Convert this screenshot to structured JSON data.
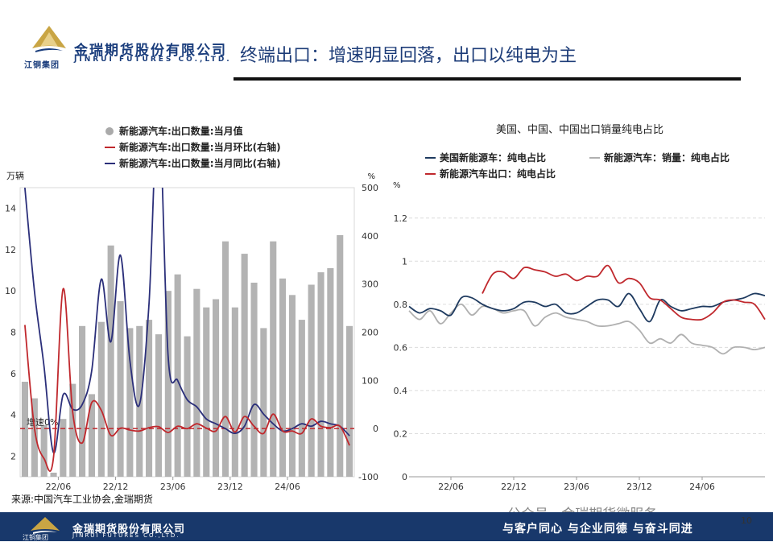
{
  "header": {
    "company_cn": "金瑞期货股份有限公司",
    "company_en": "JINRUI FUTURES CO.,LTD.",
    "logo_sub": "江铜集团",
    "title": "终端出口：增速明显回落，出口以纯电为主"
  },
  "footer": {
    "source": "来源:中国汽车工业协会,金瑞期货",
    "company_cn": "金瑞期货股份有限公司",
    "company_en": "JINRUI FUTURES CO.,LTD.",
    "logo_sub": "江铜集团",
    "slogan": "与客户同心 与企业同德 与奋斗同进",
    "watermark": "公众号 · 金瑞期货微服务",
    "page": "10"
  },
  "colors": {
    "brand_navy": "#18386b",
    "bar_gray": "#b3b3b3",
    "red": "#c0282d",
    "navy": "#2b2f7a",
    "gray_line": "#b0b0b0",
    "dark_navy": "#1e3a5f"
  },
  "chart_data": [
    {
      "type": "bar",
      "title": "",
      "y_left_unit": "万辆",
      "y_right_unit": "%",
      "y_left_ticks": [
        "2",
        "4",
        "6",
        "8",
        "10",
        "12",
        "14"
      ],
      "y_right_ticks": [
        "-100",
        "0",
        "100",
        "200",
        "300",
        "400",
        "500"
      ],
      "ylim_left": [
        1,
        15
      ],
      "ylim_right": [
        -100,
        500
      ],
      "x_tick_labels": [
        "22/06",
        "22/12",
        "23/06",
        "23/12",
        "24/06"
      ],
      "x_tick_indices": [
        4,
        10,
        16,
        22,
        28
      ],
      "reference_line": {
        "label": "增速0%",
        "value": 0
      },
      "legend": [
        "新能源汽车:出口数量:当月值",
        "新能源汽车:出口数量:当月环比(右轴)",
        "新能源汽车:出口数量:当月同比(右轴)"
      ],
      "bars": [
        5.6,
        4.8,
        3.5,
        1.2,
        3.8,
        5.5,
        8.3,
        5.0,
        8.5,
        12.2,
        9.5,
        8.2,
        8.3,
        8.6,
        7.9,
        10.0,
        10.8,
        7.8,
        10.1,
        9.2,
        9.6,
        12.4,
        9.2,
        11.8,
        10.4,
        8.2,
        12.4,
        10.6,
        9.8,
        8.6,
        10.3,
        10.9,
        11.1,
        12.7,
        8.3
      ],
      "mom": [
        215,
        1,
        -62,
        -59,
        290,
        35,
        -30,
        54,
        38,
        -14,
        1,
        -3,
        -5,
        2,
        4,
        -8,
        5,
        0,
        10,
        1,
        -5,
        25,
        -7,
        25,
        5,
        -10,
        30,
        -5,
        -5,
        -10,
        20,
        5,
        2,
        5,
        -35
      ],
      "yoy": [
        500,
        285,
        130,
        -50,
        70,
        40,
        50,
        120,
        310,
        180,
        360,
        140,
        50,
        260,
        670,
        150,
        100,
        60,
        45,
        20,
        10,
        0,
        -10,
        5,
        50,
        30,
        10,
        -5,
        0,
        10,
        5,
        15,
        10,
        5,
        -15
      ]
    },
    {
      "type": "line",
      "title": "美国、中国、中国出口销量纯电占比",
      "y_unit": "%",
      "ylim": [
        0,
        1.3
      ],
      "y_ticks": [
        "0",
        "0.2",
        "0.4",
        "0.6",
        "0.8",
        "1",
        "1.2"
      ],
      "x_tick_labels": [
        "22/06",
        "22/12",
        "23/06",
        "23/12",
        "24/06"
      ],
      "x_tick_indices": [
        4,
        10,
        16,
        22,
        28
      ],
      "series": [
        {
          "name": "美国新能源车：纯电占比",
          "color": "#1e3a5f",
          "values": [
            0.79,
            0.76,
            0.78,
            0.77,
            0.75,
            0.83,
            0.83,
            0.8,
            0.78,
            0.77,
            0.78,
            0.81,
            0.81,
            0.79,
            0.8,
            0.76,
            0.76,
            0.79,
            0.82,
            0.82,
            0.79,
            0.85,
            0.78,
            0.72,
            0.82,
            0.79,
            0.77,
            0.78,
            0.79,
            0.79,
            0.81,
            0.82,
            0.83,
            0.85,
            0.84
          ]
        },
        {
          "name": "新能源汽车：销量：纯电占比",
          "color": "#b0b0b0",
          "values": [
            0.77,
            0.73,
            0.77,
            0.71,
            0.76,
            0.8,
            0.75,
            0.79,
            0.78,
            0.76,
            0.77,
            0.77,
            0.7,
            0.74,
            0.76,
            0.74,
            0.73,
            0.72,
            0.7,
            0.7,
            0.71,
            0.72,
            0.68,
            0.62,
            0.64,
            0.62,
            0.66,
            0.62,
            0.61,
            0.6,
            0.57,
            0.6,
            0.6,
            0.59,
            0.6
          ]
        },
        {
          "name": "新能源汽车出口：纯电占比",
          "color": "#c0282d",
          "values": [
            null,
            null,
            null,
            null,
            null,
            null,
            null,
            0.85,
            0.94,
            0.95,
            0.92,
            0.97,
            0.96,
            0.95,
            0.93,
            0.94,
            0.91,
            0.93,
            0.93,
            0.98,
            0.9,
            0.92,
            0.9,
            0.83,
            0.82,
            0.78,
            0.74,
            0.73,
            0.73,
            0.76,
            0.81,
            0.82,
            0.81,
            0.8,
            0.73
          ]
        }
      ]
    }
  ]
}
